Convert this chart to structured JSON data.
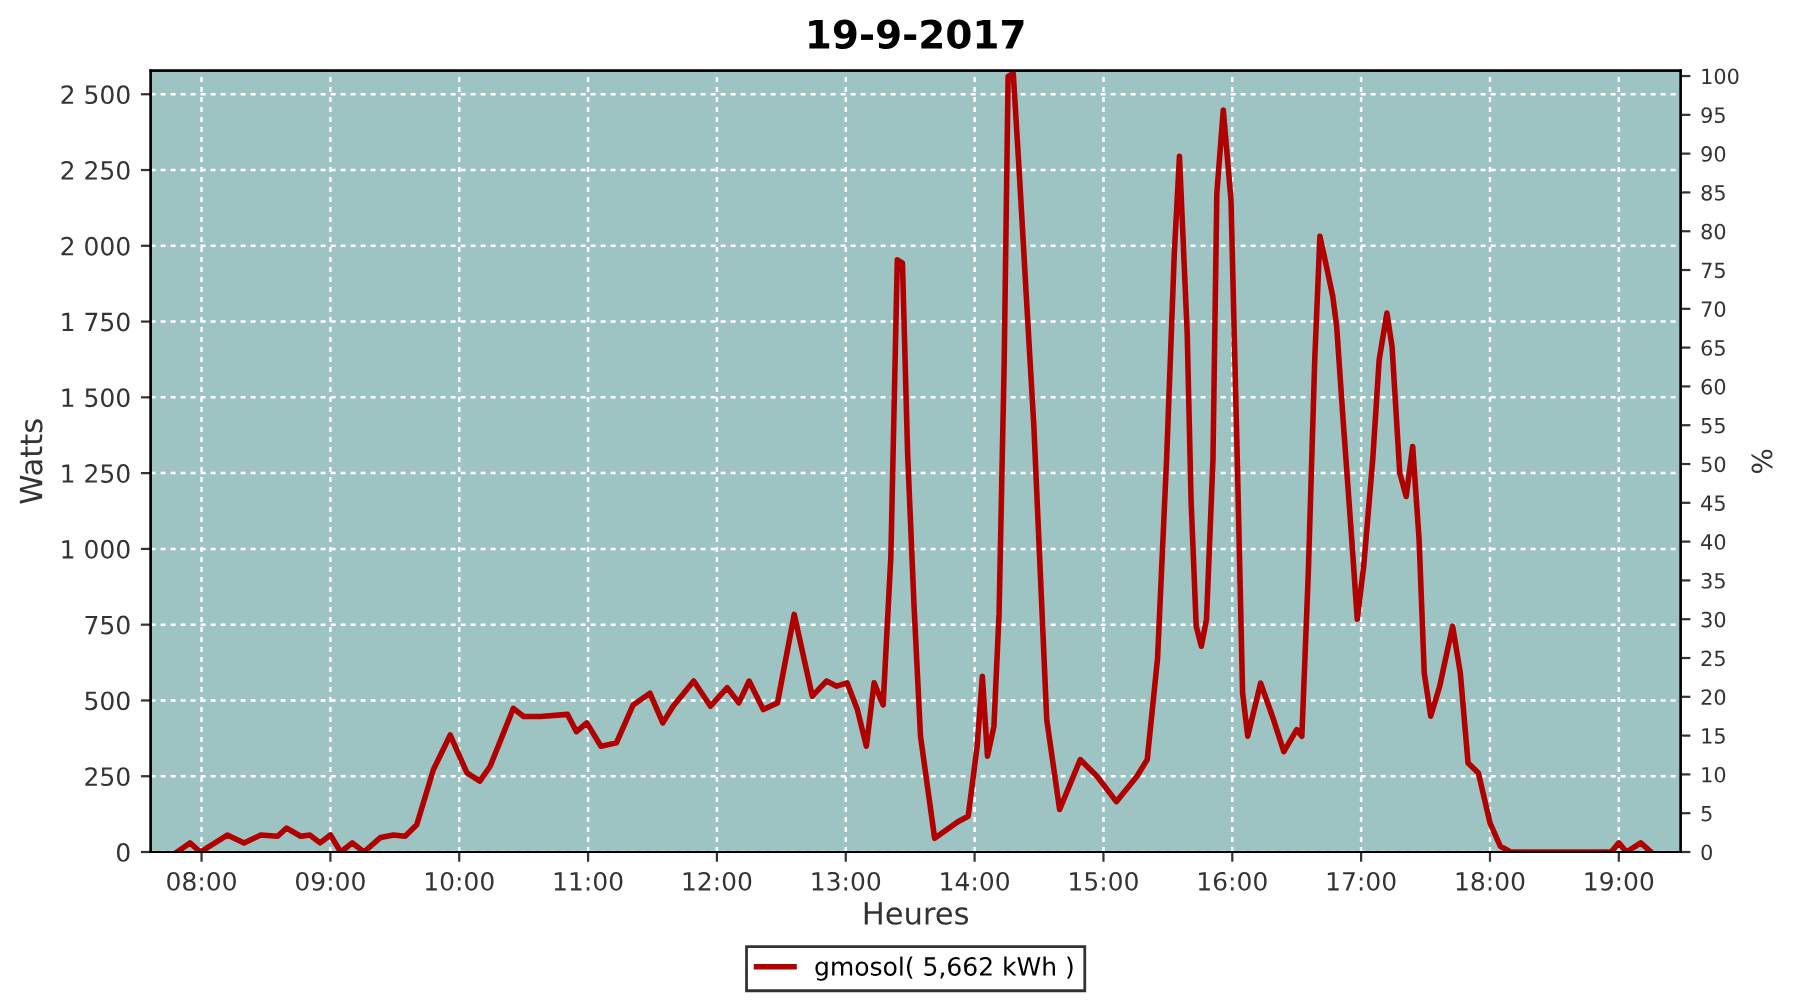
{
  "chart_data": {
    "type": "line",
    "title": "19-9-2017",
    "xlabel": "Heures",
    "ylabel": "Watts",
    "y2label": "%",
    "xlim": [
      7.605,
      19.48
    ],
    "xticks": [
      {
        "value": 8,
        "label": "08:00"
      },
      {
        "value": 9,
        "label": "09:00"
      },
      {
        "value": 10,
        "label": "10:00"
      },
      {
        "value": 11,
        "label": "11:00"
      },
      {
        "value": 12,
        "label": "12:00"
      },
      {
        "value": 13,
        "label": "13:00"
      },
      {
        "value": 14,
        "label": "14:00"
      },
      {
        "value": 15,
        "label": "15:00"
      },
      {
        "value": 16,
        "label": "16:00"
      },
      {
        "value": 17,
        "label": "17:00"
      },
      {
        "value": 18,
        "label": "18:00"
      },
      {
        "value": 19,
        "label": "19:00"
      }
    ],
    "ylim": [
      0,
      2578
    ],
    "yticks": [
      0,
      250,
      500,
      750,
      {
        "value": 1000,
        "label": "1 000"
      },
      {
        "value": 1250,
        "label": "1 250"
      },
      {
        "value": 1500,
        "label": "1 500"
      },
      {
        "value": 1750,
        "label": "1 750"
      },
      {
        "value": 2000,
        "label": "2 000"
      },
      {
        "value": 2250,
        "label": "2 250"
      },
      {
        "value": 2500,
        "label": "2 500"
      }
    ],
    "y2lim": [
      0,
      100.7
    ],
    "y2ticks": [
      0,
      5,
      10,
      15,
      20,
      25,
      30,
      35,
      40,
      45,
      50,
      55,
      60,
      65,
      70,
      75,
      80,
      85,
      90,
      95,
      100
    ],
    "grid": true,
    "legend": "bottom",
    "marker": "none",
    "line_style": "solid",
    "series": [
      {
        "name": "gmosol( 5,662 kWh )",
        "color": "#b00000",
        "x": [
          7.81,
          7.91,
          7.99,
          8.2,
          8.33,
          8.46,
          8.59,
          8.66,
          8.77,
          8.84,
          8.92,
          9.0,
          9.08,
          9.17,
          9.26,
          9.39,
          9.49,
          9.58,
          9.67,
          9.8,
          9.93,
          10.06,
          10.16,
          10.24,
          10.42,
          10.5,
          10.63,
          10.84,
          10.91,
          10.99,
          11.1,
          11.22,
          11.35,
          11.48,
          11.58,
          11.66,
          11.82,
          11.95,
          12.08,
          12.17,
          12.25,
          12.36,
          12.47,
          12.6,
          12.74,
          12.85,
          12.93,
          13.01,
          13.09,
          13.16,
          13.22,
          13.29,
          13.35,
          13.4,
          13.44,
          13.48,
          13.53,
          13.58,
          13.69,
          13.87,
          13.95,
          14.02,
          14.06,
          14.1,
          14.15,
          14.19,
          14.23,
          14.26,
          14.3,
          14.35,
          14.4,
          14.46,
          14.51,
          14.56,
          14.66,
          14.82,
          14.95,
          15.1,
          15.26,
          15.34,
          15.42,
          15.49,
          15.55,
          15.59,
          15.65,
          15.68,
          15.72,
          15.76,
          15.8,
          15.85,
          15.88,
          15.93,
          15.99,
          16.04,
          16.08,
          16.12,
          16.22,
          16.32,
          16.4,
          16.5,
          16.54,
          16.59,
          16.64,
          16.68,
          16.72,
          16.78,
          16.81,
          16.86,
          16.92,
          16.97,
          17.02,
          17.09,
          17.14,
          17.2,
          17.24,
          17.3,
          17.35,
          17.4,
          17.45,
          17.49,
          17.54,
          17.61,
          17.71,
          17.77,
          17.83,
          17.91,
          18.0,
          18.08,
          18.16,
          18.94,
          19.0,
          19.06,
          19.17,
          19.25
        ],
        "values": [
          0,
          30,
          0,
          56,
          30,
          56,
          52,
          79,
          52,
          56,
          30,
          56,
          0,
          30,
          0,
          48,
          56,
          52,
          90,
          272,
          386,
          261,
          234,
          283,
          474,
          447,
          447,
          454,
          397,
          426,
          349,
          360,
          485,
          524,
          426,
          481,
          564,
          481,
          542,
          492,
          564,
          470,
          492,
          784,
          514,
          564,
          547,
          558,
          470,
          349,
          558,
          485,
          975,
          1954,
          1943,
          1316,
          811,
          382,
          45,
          100,
          118,
          349,
          580,
          316,
          415,
          788,
          1624,
          2559,
          2569,
          2218,
          1844,
          1404,
          920,
          437,
          140,
          305,
          250,
          166,
          250,
          305,
          639,
          1294,
          1975,
          2295,
          1712,
          1162,
          745,
          679,
          768,
          1294,
          2173,
          2448,
          2151,
          1272,
          524,
          382,
          557,
          437,
          331,
          404,
          382,
          920,
          1624,
          2031,
          1954,
          1833,
          1734,
          1426,
          1074,
          768,
          943,
          1294,
          1624,
          1778,
          1668,
          1250,
          1173,
          1338,
          1030,
          590,
          448,
          547,
          745,
          590,
          294,
          261,
          96,
          19,
          0,
          0,
          30,
          0,
          30,
          0
        ]
      }
    ]
  }
}
